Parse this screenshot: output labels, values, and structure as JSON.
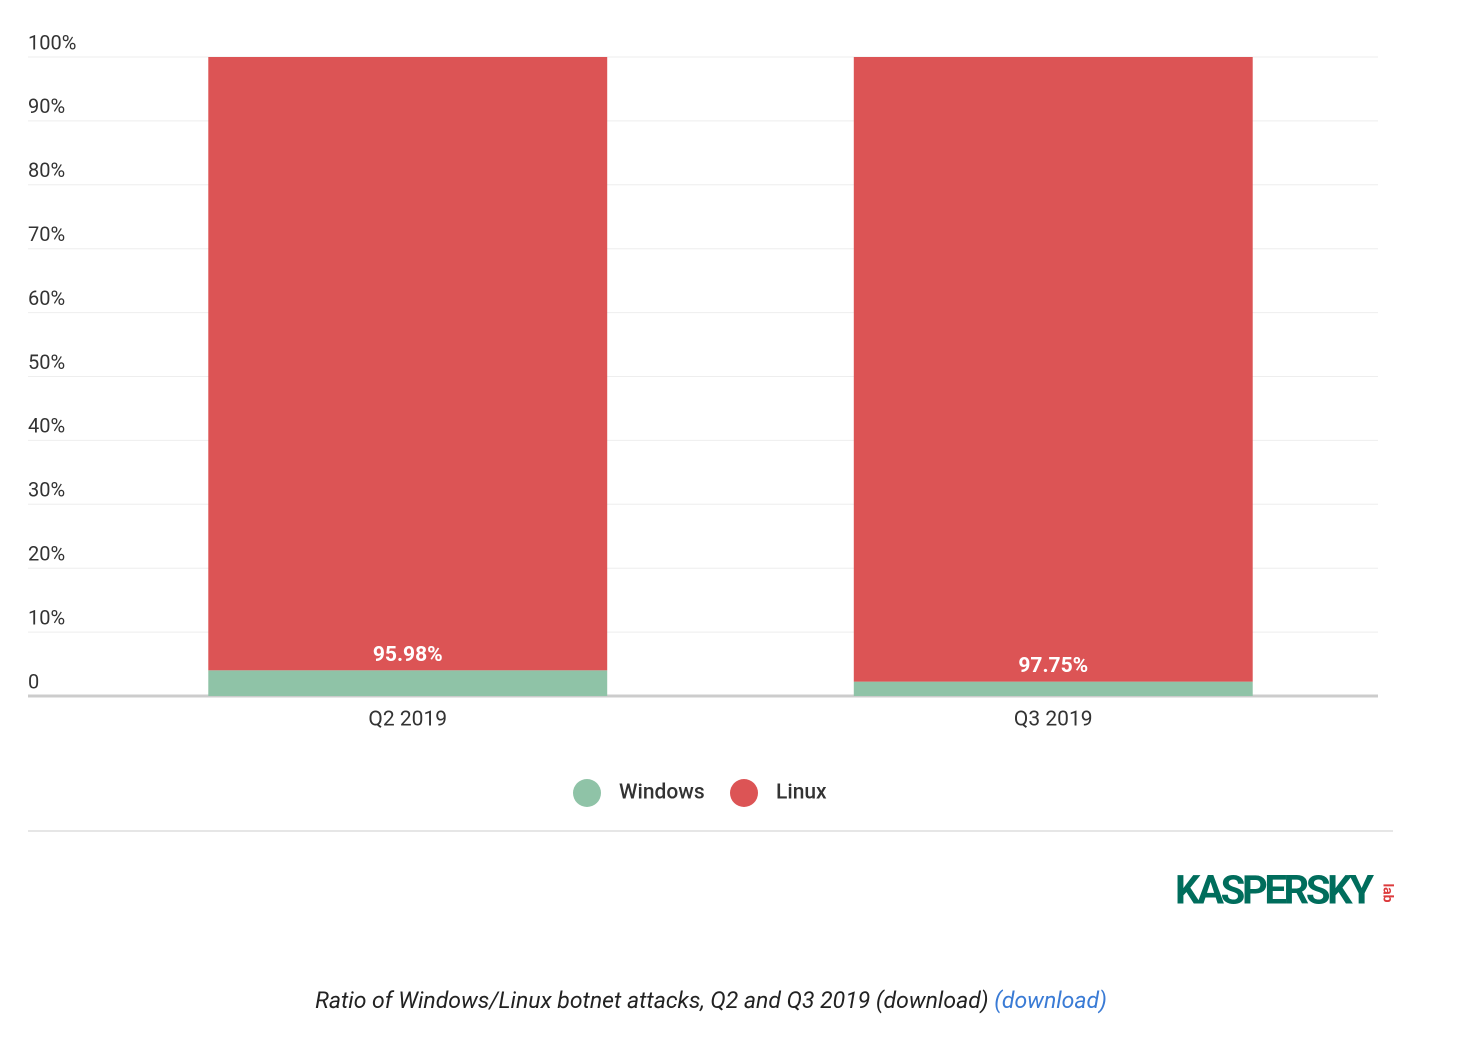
{
  "chart_data": {
    "type": "stacked-bar",
    "categories": [
      "Q2 2019",
      "Q3 2019"
    ],
    "series": [
      {
        "name": "Windows",
        "color": "#8fc3a7",
        "values": [
          4.02,
          2.25
        ]
      },
      {
        "name": "Linux",
        "color": "#dc5455",
        "values": [
          95.98,
          97.75
        ],
        "value_labels": [
          "95.98%",
          "97.75%"
        ]
      }
    ],
    "ylim": [
      0,
      100
    ],
    "yticks": [
      0,
      {
        "value": 10,
        "label": "10%"
      },
      {
        "value": 20,
        "label": "20%"
      },
      {
        "value": 30,
        "label": "30%"
      },
      {
        "value": 40,
        "label": "40%"
      },
      {
        "value": 50,
        "label": "50%"
      },
      {
        "value": 60,
        "label": "60%"
      },
      {
        "value": 70,
        "label": "70%"
      },
      {
        "value": 80,
        "label": "80%"
      },
      {
        "value": 90,
        "label": "90%"
      },
      {
        "value": 100,
        "label": "100%"
      }
    ],
    "grid": true,
    "legend": "bottom"
  },
  "logo": {
    "text": "KASPERSKY",
    "sub": "lab"
  },
  "caption": {
    "text": "Ratio of Windows/Linux botnet attacks, Q2 and Q3 2019 (download)",
    "link": "(download)"
  }
}
